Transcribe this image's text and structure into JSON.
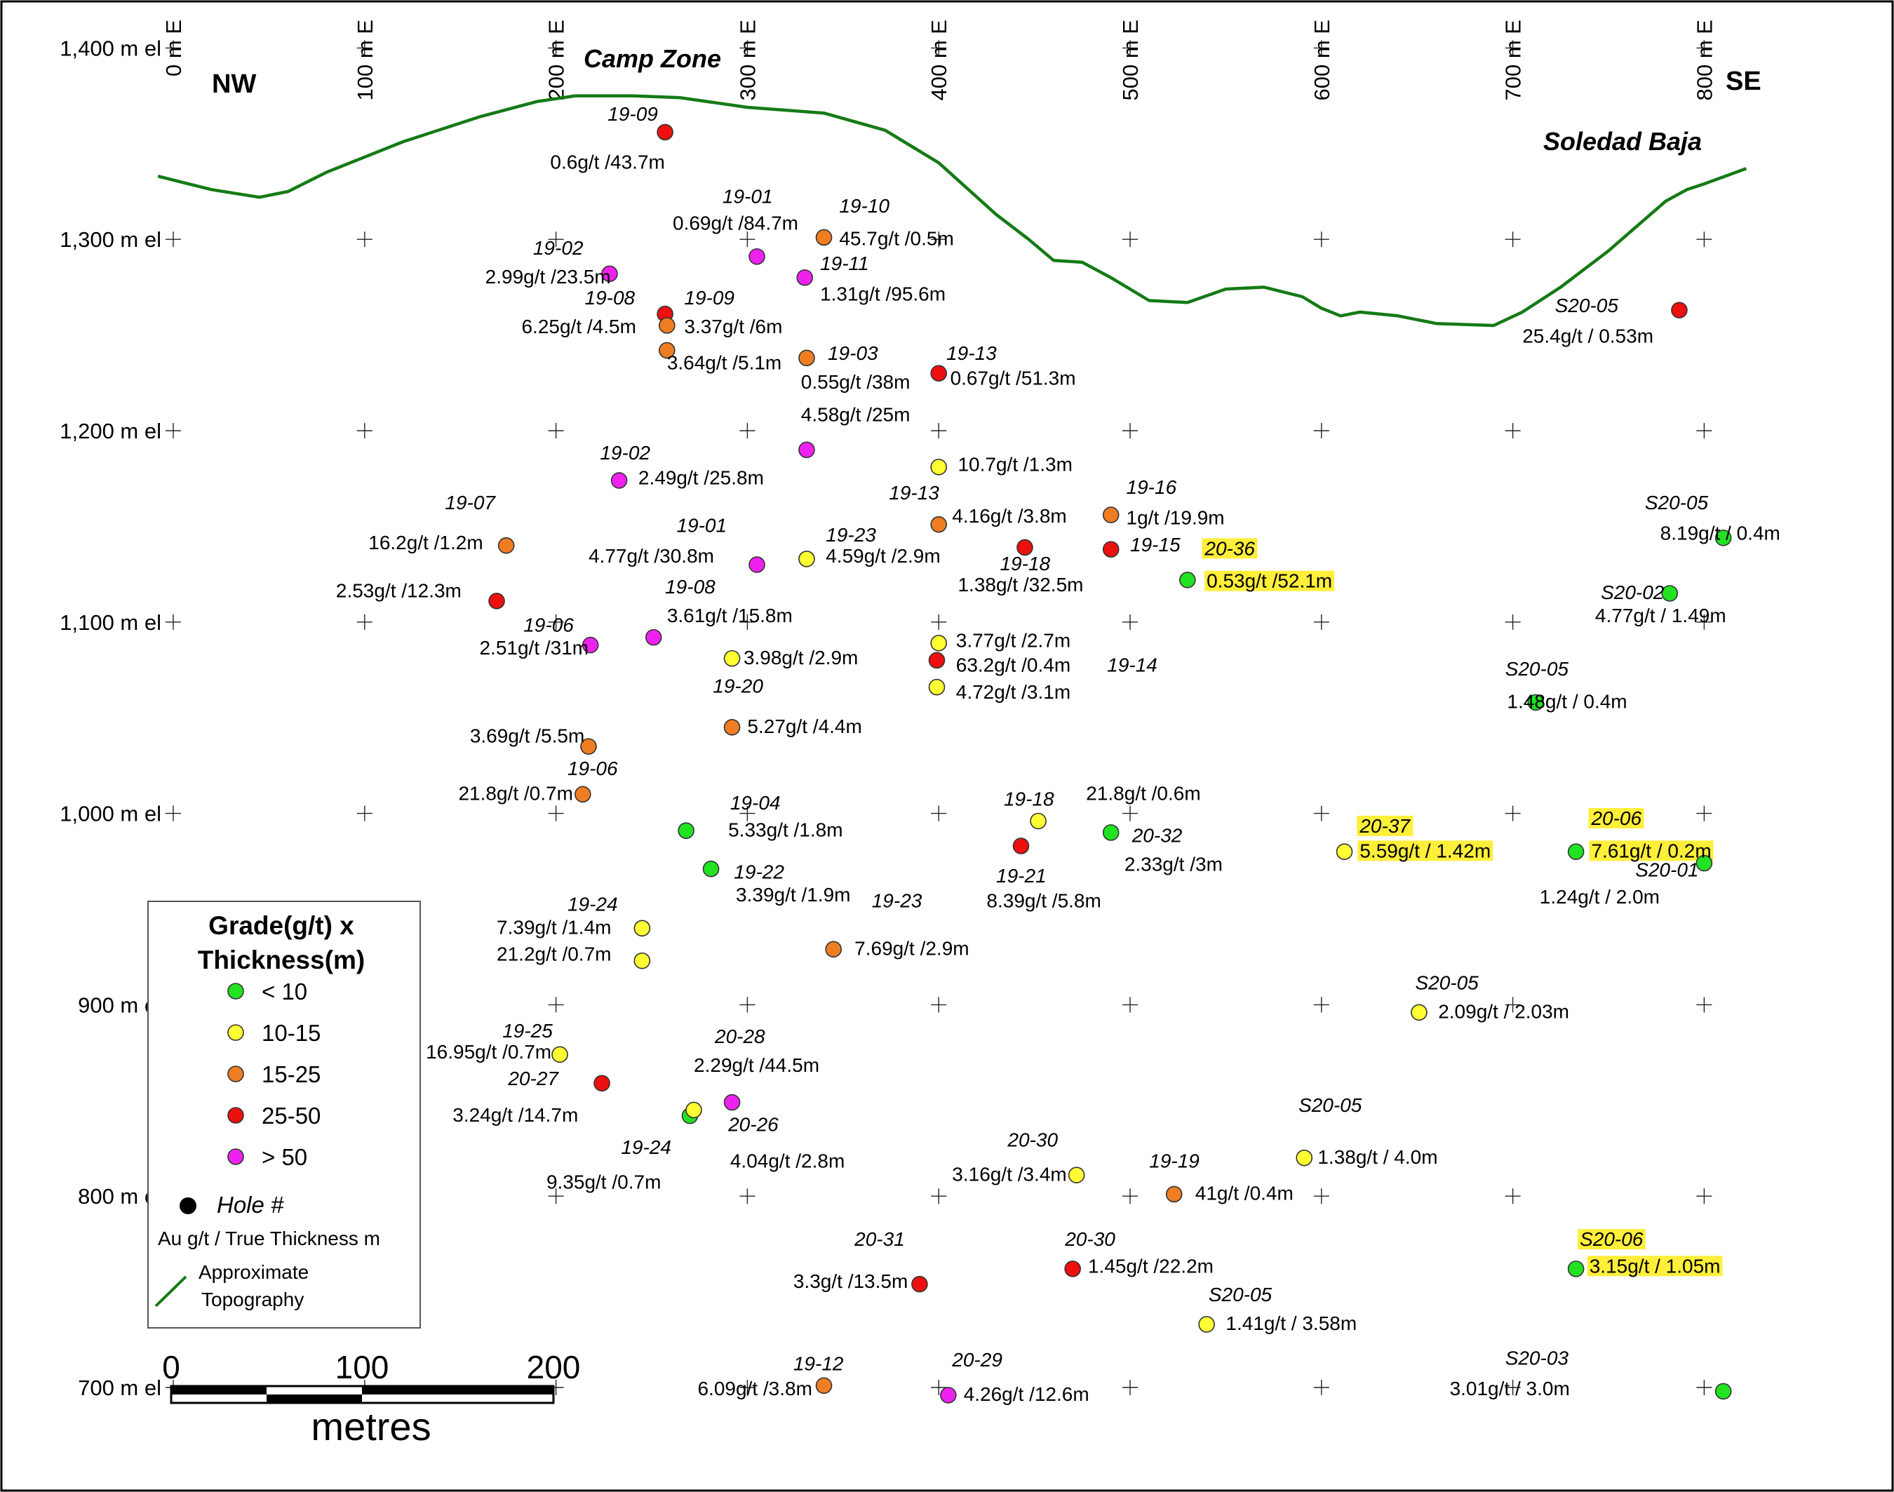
{
  "section": {
    "labels": {
      "nw": "NW",
      "se": "SE",
      "camp_zone": "Camp Zone",
      "soledad_baja": "Soledad Baja"
    },
    "elevation_labels": [
      {
        "text": "1,400 m el",
        "el": 1400
      },
      {
        "text": "1,300 m el",
        "el": 1300
      },
      {
        "text": "1,200 m el",
        "el": 1200
      },
      {
        "text": "1,100 m el",
        "el": 1100
      },
      {
        "text": "1,000 m el",
        "el": 1000
      },
      {
        "text": "900 m el",
        "el": 900
      },
      {
        "text": "800 m el",
        "el": 800
      },
      {
        "text": "700 m el",
        "el": 700
      }
    ],
    "easting_labels": [
      {
        "text": "0 m E",
        "e": 0
      },
      {
        "text": "100 m E",
        "e": 100
      },
      {
        "text": "200 m E",
        "e": 200
      },
      {
        "text": "300 m E",
        "e": 300
      },
      {
        "text": "400 m E",
        "e": 400
      },
      {
        "text": "500 m E",
        "e": 500
      },
      {
        "text": "600 m E",
        "e": 600
      },
      {
        "text": "700 m E",
        "e": 700
      },
      {
        "text": "800 m E",
        "e": 800
      }
    ],
    "grid_x": [
      0,
      100,
      200,
      300,
      400,
      500,
      600,
      700,
      800
    ],
    "grid_y": [
      1400,
      1300,
      1200,
      1100,
      1000,
      900,
      800,
      700
    ],
    "topography": [
      [
        -8,
        1333
      ],
      [
        20,
        1326
      ],
      [
        45,
        1322
      ],
      [
        60,
        1325
      ],
      [
        80,
        1335
      ],
      [
        120,
        1351
      ],
      [
        160,
        1364
      ],
      [
        190,
        1372
      ],
      [
        210,
        1375
      ],
      [
        240,
        1375
      ],
      [
        265,
        1374
      ],
      [
        300,
        1369
      ],
      [
        340,
        1366
      ],
      [
        372,
        1357
      ],
      [
        400,
        1340
      ],
      [
        430,
        1313
      ],
      [
        447,
        1300
      ],
      [
        460,
        1289
      ],
      [
        475,
        1288
      ],
      [
        490,
        1280
      ],
      [
        510,
        1268
      ],
      [
        530,
        1267
      ],
      [
        550,
        1274
      ],
      [
        570,
        1275
      ],
      [
        590,
        1270
      ],
      [
        600,
        1264
      ],
      [
        610,
        1260
      ],
      [
        620,
        1262
      ],
      [
        640,
        1260
      ],
      [
        660,
        1256
      ],
      [
        690,
        1255
      ],
      [
        705,
        1262
      ],
      [
        725,
        1275
      ],
      [
        750,
        1294
      ],
      [
        780,
        1320
      ],
      [
        791,
        1326
      ],
      [
        800,
        1329
      ],
      [
        822,
        1337
      ]
    ]
  },
  "grade_colors": {
    "lt10": "#22e322",
    "c10_15": "#ffff33",
    "c15_25": "#ef7d22",
    "c25_50": "#ee0f0f",
    "gt50": "#ee22ee"
  },
  "highlight_color": "#ffef3a",
  "topo_color": "#157a15",
  "points": [
    {
      "e": 257,
      "el": 1356,
      "c": "c25_50"
    },
    {
      "e": 305,
      "el": 1291,
      "c": "gt50"
    },
    {
      "e": 340,
      "el": 1301,
      "c": "c15_25"
    },
    {
      "e": 228,
      "el": 1282,
      "c": "gt50"
    },
    {
      "e": 330,
      "el": 1280,
      "c": "gt50"
    },
    {
      "e": 257,
      "el": 1261,
      "c": "c25_50"
    },
    {
      "e": 258,
      "el": 1255,
      "c": "c15_25"
    },
    {
      "e": 258,
      "el": 1242,
      "c": "c15_25"
    },
    {
      "e": 331,
      "el": 1238,
      "c": "c15_25"
    },
    {
      "e": 400,
      "el": 1230,
      "c": "c25_50"
    },
    {
      "e": 787,
      "el": 1263,
      "c": "c25_50"
    },
    {
      "e": 331,
      "el": 1190,
      "c": "gt50"
    },
    {
      "e": 400,
      "el": 1181,
      "c": "c10_15"
    },
    {
      "e": 233,
      "el": 1174,
      "c": "gt50"
    },
    {
      "e": 490,
      "el": 1156,
      "c": "c15_25"
    },
    {
      "e": 400,
      "el": 1151,
      "c": "c15_25"
    },
    {
      "e": 174,
      "el": 1140,
      "c": "c15_25"
    },
    {
      "e": 445,
      "el": 1139,
      "c": "c25_50"
    },
    {
      "e": 490,
      "el": 1138,
      "c": "c25_50"
    },
    {
      "e": 810,
      "el": 1144,
      "c": "lt10"
    },
    {
      "e": 305,
      "el": 1130,
      "c": "gt50"
    },
    {
      "e": 331,
      "el": 1133,
      "c": "c10_15"
    },
    {
      "e": 530,
      "el": 1122,
      "c": "lt10"
    },
    {
      "e": 782,
      "el": 1115,
      "c": "lt10"
    },
    {
      "e": 169,
      "el": 1111,
      "c": "c25_50"
    },
    {
      "e": 251,
      "el": 1092,
      "c": "gt50"
    },
    {
      "e": 218,
      "el": 1088,
      "c": "gt50"
    },
    {
      "e": 400,
      "el": 1089,
      "c": "c10_15"
    },
    {
      "e": 399,
      "el": 1080,
      "c": "c25_50"
    },
    {
      "e": 292,
      "el": 1081,
      "c": "c10_15"
    },
    {
      "e": 399,
      "el": 1066,
      "c": "c10_15"
    },
    {
      "e": 712,
      "el": 1058,
      "c": "lt10"
    },
    {
      "e": 292,
      "el": 1045,
      "c": "c15_25"
    },
    {
      "e": 217,
      "el": 1035,
      "c": "c15_25"
    },
    {
      "e": 214,
      "el": 1010,
      "c": "c15_25"
    },
    {
      "e": 452,
      "el": 996,
      "c": "c10_15"
    },
    {
      "e": 490,
      "el": 990,
      "c": "lt10"
    },
    {
      "e": 443,
      "el": 983,
      "c": "c25_50"
    },
    {
      "e": 612,
      "el": 980,
      "c": "c10_15"
    },
    {
      "e": 733,
      "el": 980,
      "c": "lt10"
    },
    {
      "e": 268,
      "el": 991,
      "c": "lt10"
    },
    {
      "e": 281,
      "el": 971,
      "c": "lt10"
    },
    {
      "e": 800,
      "el": 974,
      "c": "lt10"
    },
    {
      "e": 245,
      "el": 940,
      "c": "c10_15"
    },
    {
      "e": 245,
      "el": 923,
      "c": "c10_15"
    },
    {
      "e": 345,
      "el": 929,
      "c": "c15_25"
    },
    {
      "e": 651,
      "el": 896,
      "c": "c10_15"
    },
    {
      "e": 202,
      "el": 874,
      "c": "c10_15"
    },
    {
      "e": 224,
      "el": 859,
      "c": "c25_50"
    },
    {
      "e": 270,
      "el": 842,
      "c": "lt10"
    },
    {
      "e": 272,
      "el": 845,
      "c": "c10_15"
    },
    {
      "e": 292,
      "el": 849,
      "c": "gt50"
    },
    {
      "e": 472,
      "el": 811,
      "c": "c10_15"
    },
    {
      "e": 591,
      "el": 820,
      "c": "c10_15"
    },
    {
      "e": 523,
      "el": 801,
      "c": "c15_25"
    },
    {
      "e": 470,
      "el": 762,
      "c": "c25_50"
    },
    {
      "e": 733,
      "el": 762,
      "c": "lt10"
    },
    {
      "e": 390,
      "el": 754,
      "c": "c25_50"
    },
    {
      "e": 540,
      "el": 733,
      "c": "c10_15"
    },
    {
      "e": 340,
      "el": 701,
      "c": "c15_25"
    },
    {
      "e": 405,
      "el": 696,
      "c": "gt50"
    },
    {
      "e": 810,
      "el": 698,
      "c": "lt10"
    }
  ],
  "holes": [
    {
      "t": "19-09",
      "e": 227,
      "el": 1362
    },
    {
      "t": "19-01",
      "e": 287,
      "el": 1319
    },
    {
      "t": "19-10",
      "e": 348,
      "el": 1314
    },
    {
      "t": "19-02",
      "e": 188,
      "el": 1292
    },
    {
      "t": "19-11",
      "e": 338,
      "el": 1284
    },
    {
      "t": "19-08",
      "e": 215,
      "el": 1266
    },
    {
      "t": "19-09",
      "e": 267,
      "el": 1266
    },
    {
      "t": "19-03",
      "e": 342,
      "el": 1237
    },
    {
      "t": "19-13",
      "e": 404,
      "el": 1237
    },
    {
      "t": "S20-05",
      "e": 722,
      "el": 1262
    },
    {
      "t": "19-02",
      "e": 223,
      "el": 1185
    },
    {
      "t": "19-13",
      "e": 374,
      "el": 1164
    },
    {
      "t": "19-16",
      "e": 498,
      "el": 1167
    },
    {
      "t": "19-07",
      "e": 142,
      "el": 1159
    },
    {
      "t": "S20-05",
      "e": 769,
      "el": 1159
    },
    {
      "t": "19-01",
      "e": 263,
      "el": 1147
    },
    {
      "t": "19-23",
      "e": 341,
      "el": 1142
    },
    {
      "t": "19-15",
      "e": 500,
      "el": 1137
    },
    {
      "t": "20-36",
      "e": 539,
      "el": 1135,
      "hl": true
    },
    {
      "t": "19-18",
      "e": 432,
      "el": 1127
    },
    {
      "t": "S20-02",
      "e": 746,
      "el": 1112
    },
    {
      "t": "19-08",
      "e": 257,
      "el": 1115
    },
    {
      "t": "19-06",
      "e": 183,
      "el": 1095
    },
    {
      "t": "19-14",
      "e": 488,
      "el": 1074
    },
    {
      "t": "S20-05",
      "e": 696,
      "el": 1072
    },
    {
      "t": "19-20",
      "e": 282,
      "el": 1063
    },
    {
      "t": "19-06",
      "e": 206,
      "el": 1020
    },
    {
      "t": "19-18",
      "e": 434,
      "el": 1004
    },
    {
      "t": "19-04",
      "e": 291,
      "el": 1002
    },
    {
      "t": "20-32",
      "e": 501,
      "el": 985
    },
    {
      "t": "20-37",
      "e": 620,
      "el": 990,
      "hl": true
    },
    {
      "t": "20-06",
      "e": 741,
      "el": 994,
      "hl": true
    },
    {
      "t": "19-21",
      "e": 430,
      "el": 964
    },
    {
      "t": "19-22",
      "e": 293,
      "el": 966
    },
    {
      "t": "S20-01",
      "e": 764,
      "el": 967
    },
    {
      "t": "19-24",
      "e": 206,
      "el": 949
    },
    {
      "t": "19-23",
      "e": 365,
      "el": 951
    },
    {
      "t": "S20-05",
      "e": 649,
      "el": 908
    },
    {
      "t": "19-25",
      "e": 172,
      "el": 883
    },
    {
      "t": "20-28",
      "e": 283,
      "el": 880
    },
    {
      "t": "20-27",
      "e": 175,
      "el": 858
    },
    {
      "t": "20-26",
      "e": 290,
      "el": 834
    },
    {
      "t": "19-24",
      "e": 234,
      "el": 822
    },
    {
      "t": "20-30",
      "e": 436,
      "el": 826
    },
    {
      "t": "S20-05",
      "e": 588,
      "el": 844
    },
    {
      "t": "19-19",
      "e": 510,
      "el": 815
    },
    {
      "t": "20-30",
      "e": 466,
      "el": 774
    },
    {
      "t": "20-31",
      "e": 356,
      "el": 774
    },
    {
      "t": "S20-06",
      "e": 735,
      "el": 774,
      "hl": true
    },
    {
      "t": "20-05",
      "e": 541,
      "el": 745,
      "pre": "S"
    },
    {
      "t": "19-12",
      "e": 324,
      "el": 709
    },
    {
      "t": "20-29",
      "e": 407,
      "el": 711
    },
    {
      "t": "S20-03",
      "e": 696,
      "el": 712
    }
  ],
  "values": [
    {
      "t": "0.6g/t /43.7m",
      "e": 197,
      "el": 1337
    },
    {
      "t": "0.69g/t /84.7m",
      "e": 261,
      "el": 1305
    },
    {
      "t": "45.7g/t /0.5m",
      "e": 348,
      "el": 1297
    },
    {
      "t": "2.99g/t /23.5m",
      "e": 163,
      "el": 1277
    },
    {
      "t": "1.31g/t /95.6m",
      "e": 338,
      "el": 1268
    },
    {
      "t": "6.25g/t /4.5m",
      "e": 182,
      "el": 1251
    },
    {
      "t": "3.37g/t /6m",
      "e": 267,
      "el": 1251
    },
    {
      "t": "3.64g/t /5.1m",
      "e": 258,
      "el": 1232
    },
    {
      "t": "0.55g/t /38m",
      "e": 328,
      "el": 1222
    },
    {
      "t": "0.67g/t /51.3m",
      "e": 406,
      "el": 1224
    },
    {
      "t": "25.4g/t / 0.53m",
      "e": 705,
      "el": 1246
    },
    {
      "t": "4.58g/t /25m",
      "e": 328,
      "el": 1205
    },
    {
      "t": "10.7g/t /1.3m",
      "e": 410,
      "el": 1179
    },
    {
      "t": "2.49g/t /25.8m",
      "e": 243,
      "el": 1172
    },
    {
      "t": "1g/t /19.9m",
      "e": 498,
      "el": 1151
    },
    {
      "t": "4.16g/t /3.8m",
      "e": 407,
      "el": 1152
    },
    {
      "t": "16.2g/t /1.2m",
      "e": 102,
      "el": 1138
    },
    {
      "t": "8.19g/t / 0.4m",
      "e": 777,
      "el": 1143
    },
    {
      "t": "4.77g/t /30.8m",
      "e": 217,
      "el": 1131
    },
    {
      "t": "4.59g/t /2.9m",
      "e": 341,
      "el": 1131
    },
    {
      "t": "0.53g/t /52.1m",
      "e": 540,
      "el": 1118,
      "hl": true
    },
    {
      "t": "1.38g/t /32.5m",
      "e": 410,
      "el": 1116
    },
    {
      "t": "2.53g/t /12.3m",
      "e": 85,
      "el": 1113
    },
    {
      "t": "4.77g/t / 1.49m",
      "e": 743,
      "el": 1100
    },
    {
      "t": "3.61g/t /15.8m",
      "e": 258,
      "el": 1100
    },
    {
      "t": "3.77g/t /2.7m",
      "e": 409,
      "el": 1087
    },
    {
      "t": "2.51g/t /31m",
      "e": 160,
      "el": 1083
    },
    {
      "t": "3.98g/t /2.9m",
      "e": 298,
      "el": 1078
    },
    {
      "t": "63.2g/t /0.4m",
      "e": 409,
      "el": 1074
    },
    {
      "t": "4.72g/t /3.1m",
      "e": 409,
      "el": 1060
    },
    {
      "t": "1.48g/t / 0.4m",
      "e": 697,
      "el": 1055
    },
    {
      "t": "5.27g/t /4.4m",
      "e": 300,
      "el": 1042
    },
    {
      "t": "3.69g/t /5.5m",
      "e": 155,
      "el": 1037
    },
    {
      "t": "21.8g/t /0.6m",
      "e": 477,
      "el": 1007
    },
    {
      "t": "21.8g/t /0.7m",
      "e": 149,
      "el": 1007
    },
    {
      "t": "5.33g/t /1.8m",
      "e": 290,
      "el": 988
    },
    {
      "t": "2.33g/t /3m",
      "e": 497,
      "el": 970
    },
    {
      "t": "5.59g/t / 1.42m",
      "e": 620,
      "el": 977,
      "hl": true
    },
    {
      "t": "7.61g/t / 0.2m",
      "e": 741,
      "el": 977,
      "hl": true
    },
    {
      "t": "3.39g/t /1.9m",
      "e": 294,
      "el": 954
    },
    {
      "t": "8.39g/t /5.8m",
      "e": 425,
      "el": 951
    },
    {
      "t": "1.24g/t / 2.0m",
      "e": 714,
      "el": 953
    },
    {
      "t": "7.39g/t /1.4m",
      "e": 169,
      "el": 937
    },
    {
      "t": "7.69g/t /2.9m",
      "e": 356,
      "el": 926
    },
    {
      "t": "21.2g/t /0.7m",
      "e": 169,
      "el": 923
    },
    {
      "t": "2.09g/t / 2.03m",
      "e": 661,
      "el": 893
    },
    {
      "t": "16.95g/t /0.7m",
      "e": 132,
      "el": 872
    },
    {
      "t": "2.29g/t /44.5m",
      "e": 272,
      "el": 865
    },
    {
      "t": "3.24g/t /14.7m",
      "e": 146,
      "el": 839
    },
    {
      "t": "4.04g/t /2.8m",
      "e": 291,
      "el": 815
    },
    {
      "t": "9.35g/t /0.7m",
      "e": 195,
      "el": 804
    },
    {
      "t": "3.16g/t /3.4m",
      "e": 407,
      "el": 808
    },
    {
      "t": "1.38g/t / 4.0m",
      "e": 598,
      "el": 817
    },
    {
      "t": "41g/t /0.4m",
      "e": 534,
      "el": 798
    },
    {
      "t": "1.45g/t /22.2m",
      "e": 478,
      "el": 760
    },
    {
      "t": "3.15g/t / 1.05m",
      "e": 740,
      "el": 760,
      "hl": true
    },
    {
      "t": "3.3g/t /13.5m",
      "e": 324,
      "el": 752
    },
    {
      "t": "1.41g/t / 3.58m",
      "e": 550,
      "el": 730
    },
    {
      "t": "6.09g/t /3.8m",
      "e": 274,
      "el": 696
    },
    {
      "t": "4.26g/t /12.6m",
      "e": 413,
      "el": 693
    },
    {
      "t": "3.01g/t / 3.0m",
      "e": 667,
      "el": 696
    }
  ],
  "legend": {
    "title_line1": "Grade(g/t) x",
    "title_line2": "Thickness(m)",
    "items": [
      {
        "label": "< 10",
        "c": "lt10"
      },
      {
        "label": "10-15",
        "c": "c10_15"
      },
      {
        "label": "15-25",
        "c": "c15_25"
      },
      {
        "label": "25-50",
        "c": "c25_50"
      },
      {
        "label": "> 50",
        "c": "gt50"
      }
    ],
    "hole_label": "Hole #",
    "au_label": "Au g/t / True Thickness m",
    "topo_line1": "Approximate",
    "topo_line2": "Topography"
  },
  "scale_bar": {
    "ticks": [
      "0",
      "100",
      "200"
    ],
    "unit": "metres"
  }
}
